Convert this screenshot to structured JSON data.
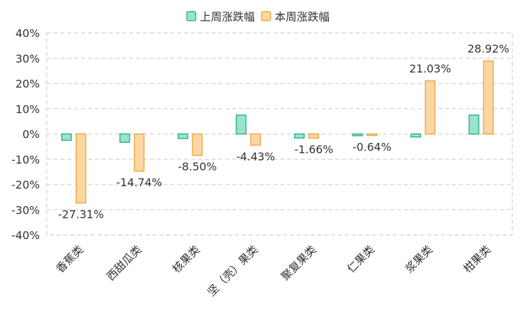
{
  "chart_data": {
    "type": "bar",
    "categories": [
      "香蕉类",
      "西甜瓜类",
      "核果类",
      "坚（壳）果类",
      "聚复果类",
      "仁果类",
      "浆果类",
      "柑果类"
    ],
    "series": [
      {
        "name": "上周涨跌幅",
        "values": [
          -2.5,
          -3.3,
          -1.8,
          7.5,
          -1.6,
          -0.7,
          -1.2,
          7.5
        ],
        "color": "#9be3cf",
        "stroke": "#2fb38f"
      },
      {
        "name": "本周涨跌幅",
        "values": [
          -27.31,
          -14.74,
          -8.5,
          -4.43,
          -1.66,
          -0.64,
          21.03,
          28.92
        ],
        "color": "#fdd7a3",
        "stroke": "#ecaa47"
      }
    ],
    "data_labels": [
      "-27.31%",
      "-14.74%",
      "-8.50%",
      "-4.43%",
      "-1.66%",
      "-0.64%",
      "21.03%",
      "28.92%"
    ],
    "y_ticks": [
      "40%",
      "30%",
      "20%",
      "10%",
      "0%",
      "-10%",
      "-20%",
      "-30%",
      "-40%"
    ],
    "ylim": [
      -40,
      40
    ],
    "legend_position": "top-center",
    "grid": "dashed"
  }
}
